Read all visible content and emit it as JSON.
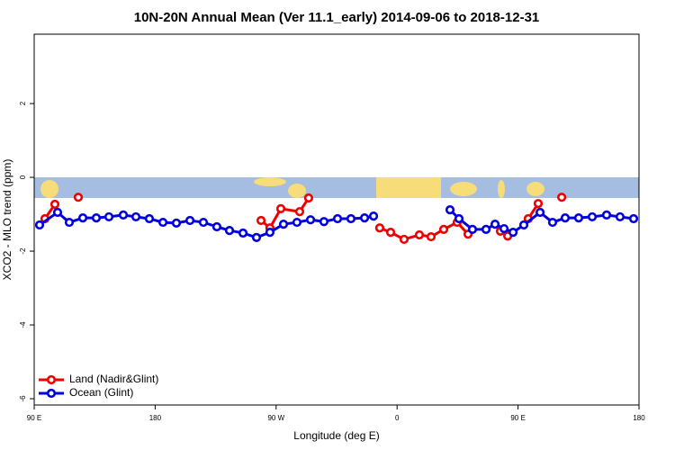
{
  "chart_data": {
    "type": "line",
    "title": "10N-20N Annual Mean (Ver 11.1_early)   2014-09-06 to 2018-12-31",
    "x_label": "Longitude (deg E)",
    "y_label": "XCO2 - MLO trend (ppm)",
    "xlim": [
      90,
      540
    ],
    "ylim": [
      -6.17,
      3.88
    ],
    "xticks": [
      {
        "value": 90,
        "label": "90 E"
      },
      180,
      {
        "value": 270,
        "label": "90 W"
      },
      {
        "value": 360,
        "label": "0"
      },
      {
        "value": 450,
        "label": "90 E"
      },
      {
        "value": 540,
        "label": "180"
      }
    ],
    "yticks": [
      2,
      0,
      -2,
      -4,
      -6
    ],
    "legend": "bottom-left",
    "series": [
      {
        "name": "Land (Nadir&Glint)",
        "color": "#ee0000",
        "x": [
          98.0,
          105.4,
          null,
          122.8,
          null,
          258.8,
          265.4,
          273.5,
          287.5,
          294.2,
          null,
          347.1,
          355.2,
          365.2,
          376.6,
          385.3,
          394.7,
          404.7,
          412.8,
          null,
          436.9,
          442.3,
          null,
          457.6,
          465.0,
          null,
          482.5
        ],
        "values": [
          -1.12,
          -0.73,
          null,
          -0.54,
          null,
          -1.17,
          -1.37,
          -0.85,
          -0.93,
          -0.56,
          null,
          -1.37,
          -1.49,
          -1.68,
          -1.56,
          -1.61,
          -1.41,
          -1.22,
          -1.54,
          null,
          -1.46,
          -1.59,
          null,
          -1.12,
          -0.71,
          null,
          -0.54
        ]
      },
      {
        "name": "Ocean (Glint)",
        "color": "#0000dd",
        "x": [
          94.0,
          107.4,
          116.1,
          126.2,
          136.2,
          145.6,
          156.3,
          165.7,
          175.7,
          185.8,
          195.8,
          205.9,
          215.9,
          225.9,
          235.3,
          245.4,
          255.4,
          265.4,
          275.5,
          285.5,
          295.6,
          305.6,
          315.7,
          325.7,
          335.8,
          342.5,
          null,
          399.4,
          406.1,
          416.1,
          426.2,
          432.9,
          439.6,
          446.3,
          454.3,
          466.4,
          475.7,
          485.1,
          495.1,
          505.2,
          515.9,
          525.9,
          536.0
        ],
        "values": [
          -1.29,
          -0.95,
          -1.22,
          -1.1,
          -1.1,
          -1.07,
          -1.02,
          -1.07,
          -1.12,
          -1.22,
          -1.24,
          -1.17,
          -1.22,
          -1.34,
          -1.44,
          -1.51,
          -1.63,
          -1.49,
          -1.27,
          -1.22,
          -1.15,
          -1.2,
          -1.12,
          -1.12,
          -1.1,
          -1.05,
          null,
          -0.88,
          -1.12,
          -1.41,
          -1.41,
          -1.27,
          -1.39,
          -1.49,
          -1.29,
          -0.95,
          -1.22,
          -1.1,
          -1.1,
          -1.07,
          -1.02,
          -1.07,
          -1.12
        ]
      }
    ]
  }
}
